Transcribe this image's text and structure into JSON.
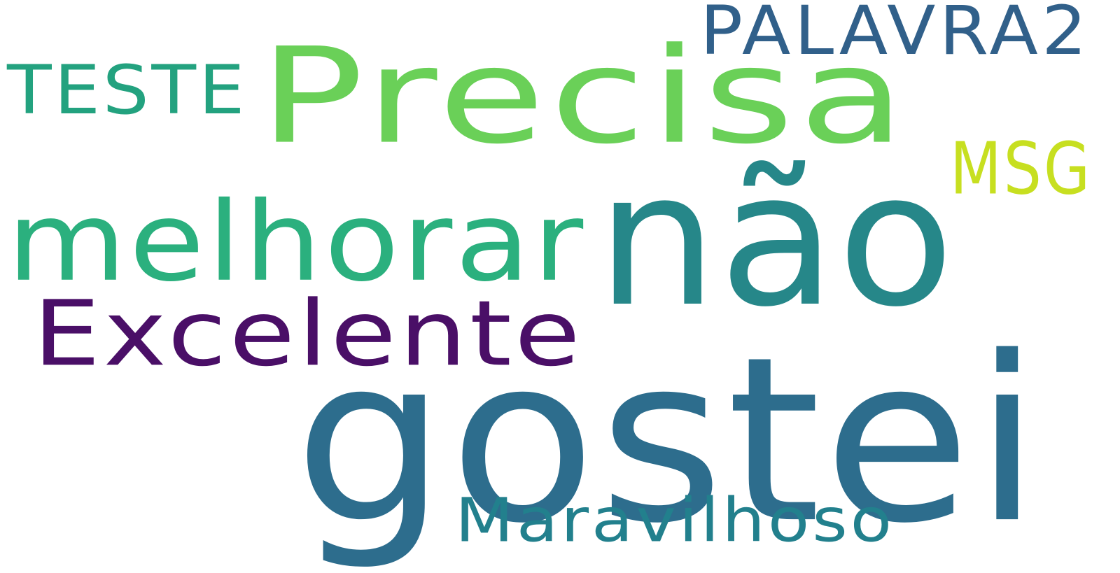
{
  "words": [
    {
      "text": "PALAVRA2",
      "color": "#31608a"
    },
    {
      "text": "TESTE",
      "color": "#23a27f"
    },
    {
      "text": "Precisa",
      "color": "#6ad058"
    },
    {
      "text": "MSG",
      "color": "#c7df20"
    },
    {
      "text": "melhorar",
      "color": "#2bb07e"
    },
    {
      "text": "não",
      "color": "#268789"
    },
    {
      "text": "Excelente",
      "color": "#4a0f67"
    },
    {
      "text": "gostei",
      "color": "#2d6d8d"
    },
    {
      "text": "Maravilhoso",
      "color": "#22808d"
    }
  ]
}
